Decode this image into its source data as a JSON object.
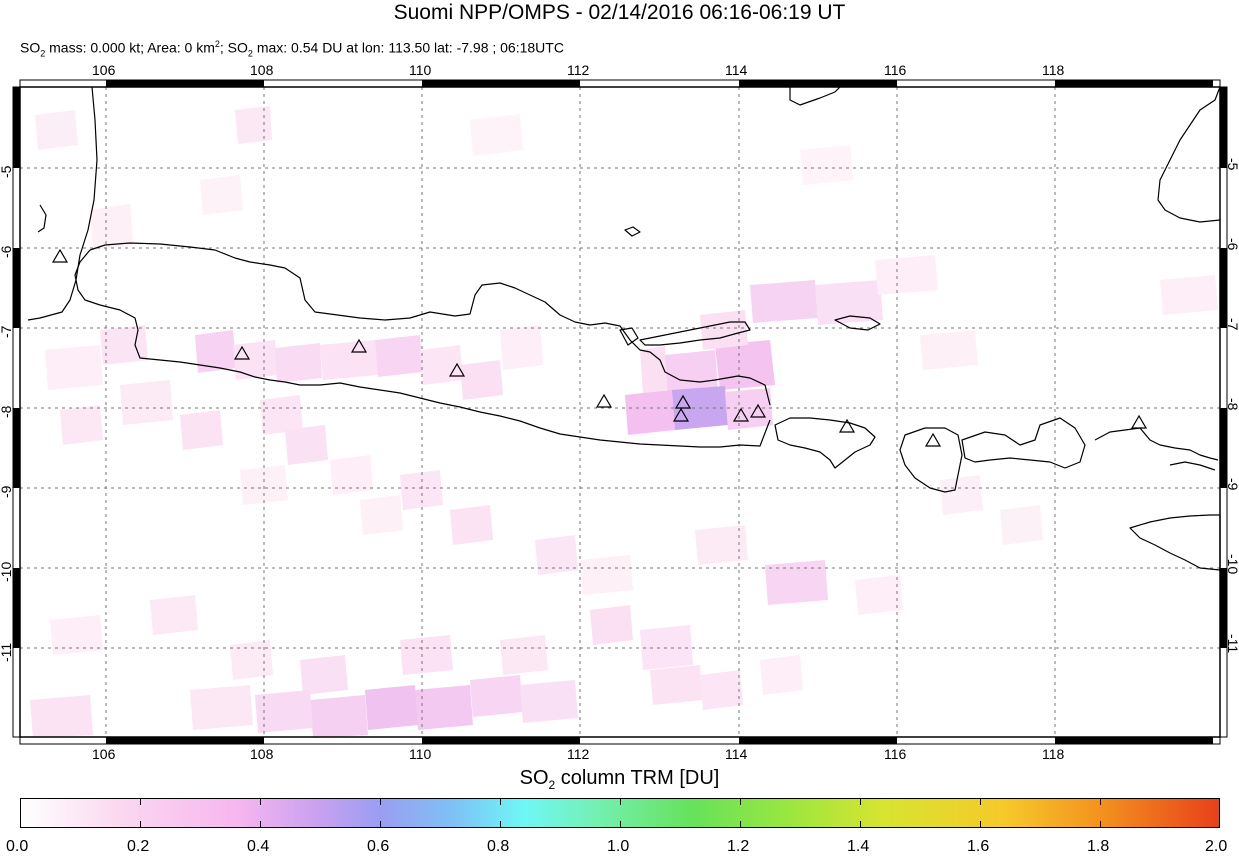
{
  "header": {
    "title": "Suomi NPP/OMPS - 02/14/2016 06:16-06:19 UT",
    "subtitle": {
      "p1": "SO",
      "sub1": "2",
      "p2": " mass: 0.000 kt; Area: 0 km",
      "sup1": "2",
      "p3": "; SO",
      "sub2": "2",
      "p4": " max: 0.54 DU at lon: 113.50 lat: -7.98 ; 06:18UTC"
    }
  },
  "map": {
    "lon_ticks": [
      "106",
      "108",
      "110",
      "112",
      "114",
      "116",
      "118"
    ],
    "lat_ticks": [
      "-5",
      "-6",
      "-7",
      "-8",
      "-9",
      "-10",
      "-11"
    ],
    "volcano_marker": "triangle-outline"
  },
  "colorbar": {
    "title_prefix": "SO",
    "title_sub": "2",
    "title_suffix": " column TRM [DU]",
    "labels": [
      "0.0",
      "0.2",
      "0.4",
      "0.6",
      "0.8",
      "1.0",
      "1.2",
      "1.4",
      "1.6",
      "1.8",
      "2.0"
    ]
  }
}
